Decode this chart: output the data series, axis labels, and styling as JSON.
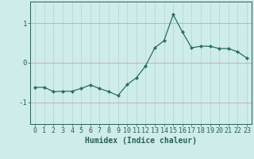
{
  "x": [
    0,
    1,
    2,
    3,
    4,
    5,
    6,
    7,
    8,
    9,
    10,
    11,
    12,
    13,
    14,
    15,
    16,
    17,
    18,
    19,
    20,
    21,
    22,
    23
  ],
  "y": [
    -0.62,
    -0.62,
    -0.73,
    -0.72,
    -0.72,
    -0.65,
    -0.56,
    -0.65,
    -0.73,
    -0.83,
    -0.55,
    -0.38,
    -0.08,
    0.38,
    0.56,
    1.22,
    0.78,
    0.38,
    0.42,
    0.42,
    0.36,
    0.36,
    0.28,
    0.12
  ],
  "line_color": "#2a6e65",
  "marker": "D",
  "marker_size": 2.0,
  "bg_color": "#ceecea",
  "grid_color_v": "#b5d8d5",
  "grid_color_h": "#c8a8a8",
  "xlabel": "Humidex (Indice chaleur)",
  "xlim": [
    -0.5,
    23.5
  ],
  "ylim": [
    -1.55,
    1.55
  ],
  "yticks": [
    -1,
    0,
    1
  ],
  "xticks": [
    0,
    1,
    2,
    3,
    4,
    5,
    6,
    7,
    8,
    9,
    10,
    11,
    12,
    13,
    14,
    15,
    16,
    17,
    18,
    19,
    20,
    21,
    22,
    23
  ],
  "font_color": "#2a5f58",
  "tick_font_size": 6.0,
  "xlabel_font_size": 7.0
}
